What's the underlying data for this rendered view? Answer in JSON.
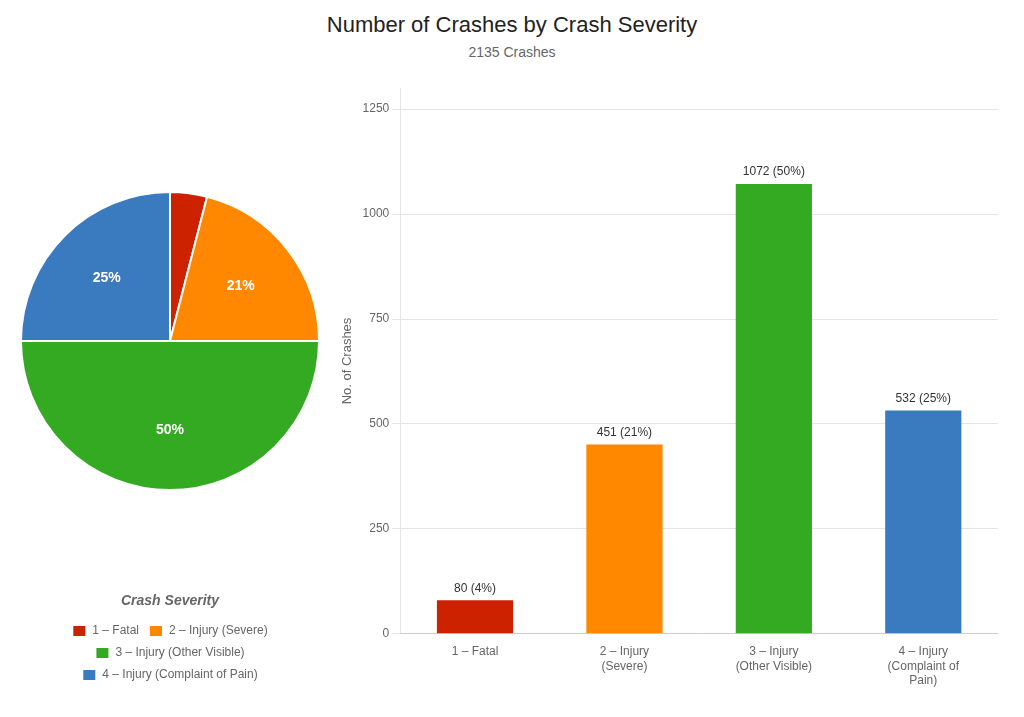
{
  "chart_data": [
    {
      "type": "pie",
      "categories": [
        "1 – Fatal",
        "2 – Injury (Severe)",
        "3 – Injury (Other Visible)",
        "4 – Injury (Complaint of Pain)"
      ],
      "values": [
        4,
        21,
        50,
        25
      ],
      "value_labels": [
        null,
        "21%",
        "50%",
        "25%"
      ],
      "colors": [
        "#cc2200",
        "#ff8800",
        "#33aa22",
        "#3a7abf"
      ],
      "legend": "bottom",
      "legend_title": "Crash Severity"
    },
    {
      "type": "bar",
      "title": "Number of Crashes by Crash Severity",
      "subtitle": "2135 Crashes",
      "categories": [
        "1 – Fatal",
        "2 – Injury\n(Severe)",
        "3 – Injury\n(Other Visible)",
        "4 – Injury\n(Complaint of\nPain)"
      ],
      "values": [
        80,
        451,
        1072,
        532
      ],
      "value_labels": [
        "80 (4%)",
        "451 (21%)",
        "1072 (50%)",
        "532 (25%)"
      ],
      "colors": [
        "#cc2200",
        "#ff8800",
        "#33aa22",
        "#3a7abf"
      ],
      "ylabel": "No. of Crashes",
      "ylim": [
        0,
        1300
      ],
      "yticks": [
        0,
        250,
        500,
        750,
        1000,
        1250
      ],
      "grid": true
    }
  ]
}
